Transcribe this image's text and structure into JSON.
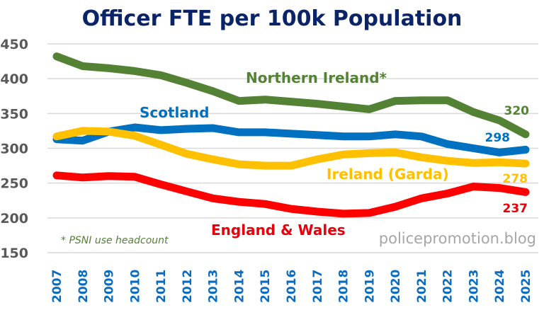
{
  "chart_data": {
    "type": "line",
    "title": "Officer FTE per 100k Population",
    "xlabel": "",
    "ylabel": "",
    "ylim": [
      150,
      450
    ],
    "yticks": [
      450,
      400,
      350,
      300,
      250,
      200,
      150
    ],
    "grid": true,
    "categories": [
      "2007",
      "2008",
      "2009",
      "2010",
      "2011",
      "2012",
      "2013",
      "2014",
      "2015",
      "2016",
      "2017",
      "2018",
      "2019",
      "2020",
      "2021",
      "2022",
      "2023",
      "2024",
      "2025"
    ],
    "series": [
      {
        "name": "Northern Ireland*",
        "color": "#548235",
        "values": [
          432,
          418,
          415,
          411,
          405,
          394,
          382,
          368,
          370,
          367,
          364,
          360,
          356,
          368,
          369,
          369,
          352,
          340,
          320
        ],
        "end_label": "320"
      },
      {
        "name": "Scotland",
        "color": "#0070c0",
        "values": [
          313,
          311,
          324,
          330,
          326,
          328,
          329,
          323,
          323,
          321,
          319,
          317,
          317,
          320,
          317,
          306,
          300,
          294,
          298
        ],
        "end_label": "298"
      },
      {
        "name": "Ireland (Garda)",
        "color": "#ffc000",
        "values": [
          317,
          325,
          324,
          318,
          305,
          292,
          284,
          277,
          275,
          275,
          284,
          291,
          293,
          294,
          287,
          282,
          279,
          280,
          278
        ],
        "end_label": "278"
      },
      {
        "name": "England & Wales",
        "color": "#ff0000",
        "values": [
          261,
          258,
          260,
          259,
          248,
          238,
          228,
          223,
          220,
          213,
          209,
          206,
          207,
          216,
          228,
          235,
          245,
          243,
          237
        ],
        "end_label": "237"
      }
    ],
    "annotations": {
      "footnote": "* PSNI use headcount",
      "watermark": "policepromotion.blog"
    }
  }
}
